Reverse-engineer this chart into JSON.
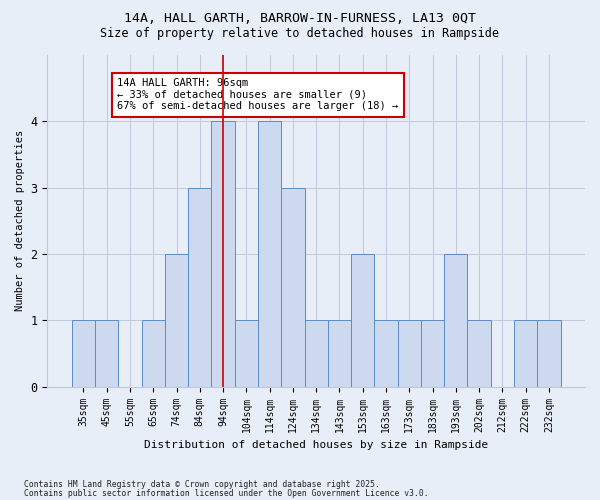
{
  "title_line1": "14A, HALL GARTH, BARROW-IN-FURNESS, LA13 0QT",
  "title_line2": "Size of property relative to detached houses in Rampside",
  "xlabel": "Distribution of detached houses by size in Rampside",
  "ylabel": "Number of detached properties",
  "categories": [
    "35sqm",
    "45sqm",
    "55sqm",
    "65sqm",
    "74sqm",
    "84sqm",
    "94sqm",
    "104sqm",
    "114sqm",
    "124sqm",
    "134sqm",
    "143sqm",
    "153sqm",
    "163sqm",
    "173sqm",
    "183sqm",
    "193sqm",
    "202sqm",
    "212sqm",
    "222sqm",
    "232sqm"
  ],
  "values": [
    1,
    1,
    0,
    1,
    2,
    3,
    4,
    1,
    4,
    3,
    1,
    1,
    2,
    1,
    1,
    1,
    2,
    1,
    0,
    1,
    1
  ],
  "bar_color": "#ccd9ee",
  "bar_edge_color": "#5b8cc8",
  "marker_line_index": 6,
  "annotation_line1": "14A HALL GARTH: 96sqm",
  "annotation_line2": "← 33% of detached houses are smaller (9)",
  "annotation_line3": "67% of semi-detached houses are larger (18) →",
  "ylim": [
    0,
    5
  ],
  "yticks": [
    0,
    1,
    2,
    3,
    4
  ],
  "footnote1": "Contains HM Land Registry data © Crown copyright and database right 2025.",
  "footnote2": "Contains public sector information licensed under the Open Government Licence v3.0.",
  "bg_color": "#e8eef8",
  "annotation_box_color": "#ffffff",
  "annotation_box_edge": "#cc0000",
  "marker_line_color": "#cc0000",
  "grid_color": "#c0c8da"
}
